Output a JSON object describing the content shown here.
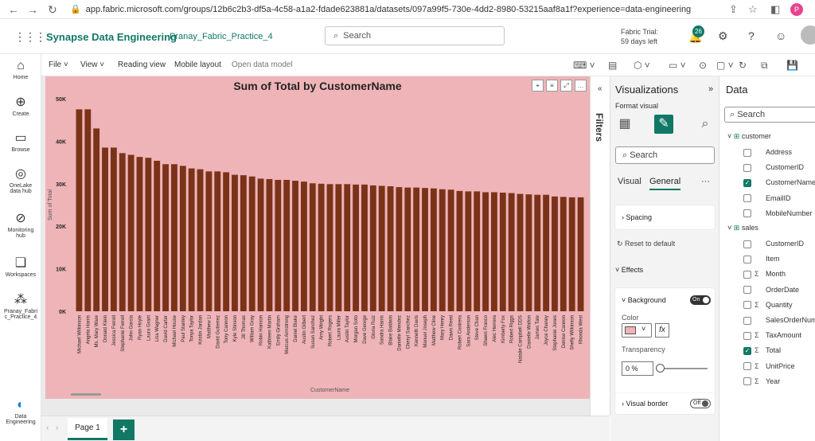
{
  "browser": {
    "url": "app.fabric.microsoft.com/groups/12b6c2b3-df5a-4c58-a1a2-fdade623881a/datasets/097a99f5-730e-4dd2-8980-53215aaf8a1f?experience=data-engineering",
    "profile_initial": "P"
  },
  "header": {
    "app_title": "Synapse Data Engineering",
    "workspace": "Pranay_Fabric_Practice_4",
    "search_placeholder": "Search",
    "trial_line1": "Fabric Trial:",
    "trial_line2": "59 days left",
    "notification_count": "26"
  },
  "rail": {
    "items": [
      {
        "label": "Home",
        "icon": "home-icon"
      },
      {
        "label": "Create",
        "icon": "plus-circle-icon"
      },
      {
        "label": "Browse",
        "icon": "folder-icon"
      },
      {
        "label": "OneLake data hub",
        "icon": "onelake-icon"
      },
      {
        "label": "Monitoring hub",
        "icon": "monitor-icon"
      },
      {
        "label": "Workspaces",
        "icon": "workspaces-icon"
      },
      {
        "label": "Pranay_Fabri c_Practice_4",
        "icon": "workspace-icon"
      }
    ],
    "bottom_label": "Data Engineering"
  },
  "ribbon": {
    "file": "File",
    "view": "View",
    "reading_view": "Reading view",
    "mobile_layout": "Mobile layout",
    "open_data_model": "Open data model"
  },
  "pages": {
    "tab1": "Page 1",
    "add": "+"
  },
  "filters_label": "Filters",
  "visualizations": {
    "title": "Visualizations",
    "subtitle": "Format visual",
    "search_placeholder": "Search",
    "tab_visual": "Visual",
    "tab_general": "General",
    "more": "···",
    "spacing": "Spacing",
    "reset": "Reset to default",
    "effects": "Effects",
    "background": "Background",
    "background_toggle": "On",
    "color_label": "Color",
    "transparency_label": "Transparency",
    "transparency_value": "0",
    "transparency_unit": "%",
    "visual_border": "Visual border",
    "visual_border_toggle": "Off",
    "background_color": "#eeb4b8"
  },
  "data_pane": {
    "title": "Data",
    "search_placeholder": "Search",
    "tables": [
      {
        "name": "customer",
        "fields": [
          {
            "name": "Address",
            "checked": false,
            "sigma": false
          },
          {
            "name": "CustomerID",
            "checked": false,
            "sigma": false
          },
          {
            "name": "CustomerName",
            "checked": true,
            "sigma": false
          },
          {
            "name": "EmailID",
            "checked": false,
            "sigma": false
          },
          {
            "name": "MobileNumber",
            "checked": false,
            "sigma": false
          }
        ]
      },
      {
        "name": "sales",
        "fields": [
          {
            "name": "CustomerID",
            "checked": false,
            "sigma": false
          },
          {
            "name": "Item",
            "checked": false,
            "sigma": false
          },
          {
            "name": "Month",
            "checked": false,
            "sigma": true
          },
          {
            "name": "OrderDate",
            "checked": false,
            "sigma": false
          },
          {
            "name": "Quantity",
            "checked": false,
            "sigma": true
          },
          {
            "name": "SalesOrderNum",
            "checked": false,
            "sigma": false
          },
          {
            "name": "TaxAmount",
            "checked": false,
            "sigma": true
          },
          {
            "name": "Total",
            "checked": true,
            "sigma": true
          },
          {
            "name": "UnitPrice",
            "checked": false,
            "sigma": true
          },
          {
            "name": "Year",
            "checked": false,
            "sigma": true
          }
        ]
      }
    ]
  },
  "chart_data": {
    "type": "bar",
    "title": "Sum of Total by CustomerName",
    "xlabel": "CustomerName",
    "ylabel": "Sum of Total",
    "ylim": [
      0,
      50000
    ],
    "yticks": [
      "0K",
      "10K",
      "20K",
      "30K",
      "40K",
      "50K"
    ],
    "ytick_values": [
      0,
      10000,
      20000,
      30000,
      40000,
      50000
    ],
    "bar_color": "#7a3318",
    "categories": [
      "Michael Wilkinson",
      "Angela Harris",
      "Ms. Mary Ware",
      "Donald Klein",
      "Jessica Ferrell",
      "Stephanie Ferrell",
      "John Garcia",
      "Ryan Hoyle",
      "Laura Grant",
      "Lisa Wagner",
      "David Carter",
      "Michael House",
      "Paul Stanley",
      "Tonya Taylor",
      "Kristin Jordan",
      "Matthew Li",
      "David Gutierrez",
      "Tony Cannon",
      "Kyle Stinson",
      "Jill Thomas",
      "William Gray",
      "Robin Hanson",
      "Kathleen Martin",
      "Emily Graham",
      "Marcus Armstrong",
      "Daniel Blake",
      "Austin Gilbert",
      "Susan Sanchez",
      "Amy Wright",
      "Robert Rogers",
      "Laura Miller",
      "Austin Taylor",
      "Morgan Soto",
      "Dave George",
      "Gloria Ruiz",
      "Sandra Harris",
      "Blake Baldwin",
      "Danielle Mendez",
      "Cheryl Sanchez",
      "Kenneth Davis",
      "Manuel Joseph",
      "Matthew Cline",
      "Mary Henry",
      "Dawn Reed",
      "Robert Contrera",
      "Sara Anderson",
      "Steve Chan",
      "Shawn Franco",
      "Alec Herrera",
      "Kimberly Fox",
      "Robert Riggs",
      "Natalie Campbell DDS",
      "Danielle Walton",
      "James Tate",
      "Joyce Chaney",
      "Stephanie Jones",
      "Denise Cannon",
      "Shelly Wilkinson",
      "Rhonda West"
    ],
    "values": [
      47500,
      47500,
      43000,
      38500,
      38500,
      37200,
      36800,
      36300,
      36100,
      35400,
      34600,
      34600,
      34200,
      33600,
      33400,
      32900,
      32900,
      32700,
      32100,
      32000,
      31700,
      31200,
      31100,
      30900,
      30900,
      30700,
      30500,
      30100,
      30000,
      29900,
      29900,
      29900,
      29800,
      29800,
      29600,
      29500,
      29400,
      29200,
      29100,
      29100,
      29000,
      28900,
      28700,
      28600,
      28300,
      28200,
      28200,
      28000,
      28000,
      27900,
      27800,
      27600,
      27500,
      27400,
      27400,
      27000,
      26900,
      26800,
      26800
    ]
  }
}
